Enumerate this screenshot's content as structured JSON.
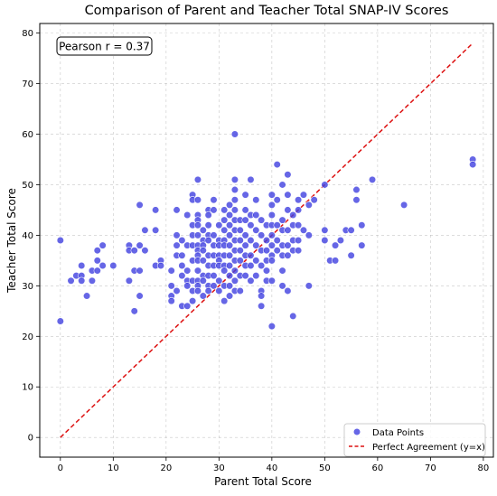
{
  "chart_data": {
    "type": "scatter",
    "title": "Comparison of Parent and Teacher Total SNAP-IV Scores",
    "xlabel": "Parent Total Score",
    "ylabel": "Teacher Total Score",
    "xlim": [
      -3.9,
      81.9
    ],
    "ylim": [
      -3.9,
      81.9
    ],
    "xticks": [
      0,
      10,
      20,
      30,
      40,
      50,
      60,
      70,
      80
    ],
    "yticks": [
      0,
      10,
      20,
      30,
      40,
      50,
      60,
      70,
      80
    ],
    "grid": true,
    "legend_position": "bottom-right",
    "annotation": "Pearson r = 0.37",
    "colors": {
      "points": "#4040e0",
      "points_edge": "#ffffff",
      "line": "#dd1111"
    },
    "series": [
      {
        "name": "Data Points",
        "kind": "scatter",
        "points": [
          [
            0,
            39
          ],
          [
            0,
            23
          ],
          [
            2,
            31
          ],
          [
            3,
            32
          ],
          [
            4,
            32
          ],
          [
            4,
            31
          ],
          [
            4,
            34
          ],
          [
            5,
            28
          ],
          [
            6,
            33
          ],
          [
            6,
            31
          ],
          [
            7,
            37
          ],
          [
            7,
            35
          ],
          [
            7,
            33
          ],
          [
            8,
            38
          ],
          [
            8,
            34
          ],
          [
            10,
            34
          ],
          [
            13,
            38
          ],
          [
            13,
            37
          ],
          [
            13,
            31
          ],
          [
            14,
            37
          ],
          [
            14,
            33
          ],
          [
            14,
            25
          ],
          [
            15,
            46
          ],
          [
            15,
            38
          ],
          [
            15,
            33
          ],
          [
            15,
            28
          ],
          [
            16,
            41
          ],
          [
            16,
            37
          ],
          [
            18,
            45
          ],
          [
            18,
            41
          ],
          [
            18,
            34
          ],
          [
            19,
            35
          ],
          [
            19,
            34
          ],
          [
            21,
            33
          ],
          [
            21,
            30
          ],
          [
            21,
            28
          ],
          [
            21,
            27
          ],
          [
            22,
            36
          ],
          [
            22,
            29
          ],
          [
            22,
            45
          ],
          [
            22,
            40
          ],
          [
            22,
            38
          ],
          [
            23,
            39
          ],
          [
            23,
            36
          ],
          [
            23,
            34
          ],
          [
            23,
            32
          ],
          [
            23,
            26
          ],
          [
            24,
            44
          ],
          [
            24,
            38
          ],
          [
            24,
            33
          ],
          [
            24,
            31
          ],
          [
            24,
            30
          ],
          [
            24,
            26
          ],
          [
            25,
            48
          ],
          [
            25,
            47
          ],
          [
            25,
            42
          ],
          [
            25,
            40
          ],
          [
            25,
            38
          ],
          [
            25,
            35
          ],
          [
            25,
            31
          ],
          [
            25,
            29
          ],
          [
            25,
            27
          ],
          [
            26,
            51
          ],
          [
            26,
            47
          ],
          [
            26,
            44
          ],
          [
            26,
            43
          ],
          [
            26,
            42
          ],
          [
            26,
            40
          ],
          [
            26,
            38
          ],
          [
            26,
            37
          ],
          [
            26,
            36
          ],
          [
            26,
            35
          ],
          [
            26,
            33
          ],
          [
            26,
            31
          ],
          [
            26,
            30
          ],
          [
            26,
            29
          ],
          [
            27,
            41
          ],
          [
            27,
            39
          ],
          [
            27,
            38
          ],
          [
            27,
            37
          ],
          [
            27,
            35
          ],
          [
            27,
            32
          ],
          [
            27,
            31
          ],
          [
            27,
            28
          ],
          [
            28,
            45
          ],
          [
            28,
            44
          ],
          [
            28,
            42
          ],
          [
            28,
            40
          ],
          [
            28,
            39
          ],
          [
            28,
            36
          ],
          [
            28,
            34
          ],
          [
            28,
            32
          ],
          [
            28,
            30
          ],
          [
            28,
            29
          ],
          [
            29,
            47
          ],
          [
            29,
            45
          ],
          [
            29,
            40
          ],
          [
            29,
            38
          ],
          [
            29,
            36
          ],
          [
            29,
            34
          ],
          [
            29,
            32
          ],
          [
            29,
            30
          ],
          [
            30,
            42
          ],
          [
            30,
            39
          ],
          [
            30,
            38
          ],
          [
            30,
            36
          ],
          [
            30,
            35
          ],
          [
            30,
            34
          ],
          [
            30,
            31
          ],
          [
            30,
            29
          ],
          [
            31,
            45
          ],
          [
            31,
            43
          ],
          [
            31,
            41
          ],
          [
            31,
            39
          ],
          [
            31,
            38
          ],
          [
            31,
            36
          ],
          [
            31,
            34
          ],
          [
            31,
            33
          ],
          [
            31,
            30
          ],
          [
            31,
            27
          ],
          [
            32,
            46
          ],
          [
            32,
            44
          ],
          [
            32,
            42
          ],
          [
            32,
            40
          ],
          [
            32,
            38
          ],
          [
            32,
            36
          ],
          [
            32,
            34
          ],
          [
            32,
            32
          ],
          [
            32,
            30
          ],
          [
            32,
            28
          ],
          [
            33,
            60
          ],
          [
            33,
            51
          ],
          [
            33,
            49
          ],
          [
            33,
            47
          ],
          [
            33,
            45
          ],
          [
            33,
            43
          ],
          [
            33,
            41
          ],
          [
            33,
            39
          ],
          [
            33,
            37
          ],
          [
            33,
            35
          ],
          [
            33,
            33
          ],
          [
            33,
            31
          ],
          [
            33,
            29
          ],
          [
            34,
            43
          ],
          [
            34,
            41
          ],
          [
            34,
            39
          ],
          [
            34,
            37
          ],
          [
            34,
            35
          ],
          [
            34,
            32
          ],
          [
            34,
            29
          ],
          [
            35,
            48
          ],
          [
            35,
            45
          ],
          [
            35,
            43
          ],
          [
            35,
            40
          ],
          [
            35,
            38
          ],
          [
            35,
            36
          ],
          [
            35,
            34
          ],
          [
            35,
            32
          ],
          [
            36,
            51
          ],
          [
            36,
            44
          ],
          [
            36,
            42
          ],
          [
            36,
            39
          ],
          [
            36,
            36
          ],
          [
            36,
            34
          ],
          [
            36,
            31
          ],
          [
            37,
            47
          ],
          [
            37,
            44
          ],
          [
            37,
            41
          ],
          [
            37,
            38
          ],
          [
            37,
            35
          ],
          [
            37,
            32
          ],
          [
            38,
            43
          ],
          [
            38,
            40
          ],
          [
            38,
            37
          ],
          [
            38,
            34
          ],
          [
            38,
            29
          ],
          [
            38,
            28
          ],
          [
            38,
            26
          ],
          [
            39,
            42
          ],
          [
            39,
            39
          ],
          [
            39,
            37
          ],
          [
            39,
            35
          ],
          [
            39,
            33
          ],
          [
            39,
            31
          ],
          [
            40,
            48
          ],
          [
            40,
            46
          ],
          [
            40,
            44
          ],
          [
            40,
            42
          ],
          [
            40,
            40
          ],
          [
            40,
            38
          ],
          [
            40,
            36
          ],
          [
            40,
            35
          ],
          [
            40,
            31
          ],
          [
            40,
            22
          ],
          [
            41,
            54
          ],
          [
            41,
            47
          ],
          [
            41,
            42
          ],
          [
            41,
            39
          ],
          [
            41,
            37
          ],
          [
            42,
            50
          ],
          [
            42,
            43
          ],
          [
            42,
            41
          ],
          [
            42,
            38
          ],
          [
            42,
            36
          ],
          [
            42,
            33
          ],
          [
            42,
            30
          ],
          [
            43,
            52
          ],
          [
            43,
            48
          ],
          [
            43,
            45
          ],
          [
            43,
            41
          ],
          [
            43,
            38
          ],
          [
            43,
            36
          ],
          [
            43,
            29
          ],
          [
            44,
            44
          ],
          [
            44,
            42
          ],
          [
            44,
            39
          ],
          [
            44,
            37
          ],
          [
            44,
            24
          ],
          [
            45,
            47
          ],
          [
            45,
            45
          ],
          [
            45,
            42
          ],
          [
            45,
            39
          ],
          [
            45,
            37
          ],
          [
            46,
            48
          ],
          [
            46,
            41
          ],
          [
            47,
            46
          ],
          [
            47,
            40
          ],
          [
            47,
            30
          ],
          [
            48,
            47
          ],
          [
            50,
            50
          ],
          [
            50,
            41
          ],
          [
            50,
            39
          ],
          [
            51,
            35
          ],
          [
            52,
            38
          ],
          [
            52,
            35
          ],
          [
            53,
            39
          ],
          [
            54,
            41
          ],
          [
            55,
            41
          ],
          [
            55,
            36
          ],
          [
            56,
            49
          ],
          [
            56,
            47
          ],
          [
            57,
            42
          ],
          [
            57,
            38
          ],
          [
            59,
            51
          ],
          [
            65,
            46
          ],
          [
            78,
            55
          ],
          [
            78,
            54
          ]
        ]
      },
      {
        "name": "Perfect Agreement (y=x)",
        "kind": "line",
        "style": "dashed",
        "x": [
          0,
          78
        ],
        "y": [
          0,
          78
        ]
      }
    ]
  }
}
